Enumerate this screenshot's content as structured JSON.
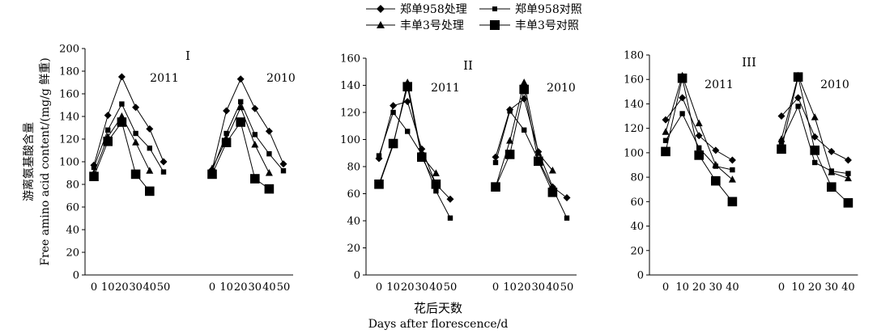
{
  "legend": [
    {
      "label": "郑单958处理",
      "marker": "diamond"
    },
    {
      "label": "郑单958对照",
      "marker": "square-small"
    },
    {
      "label": "丰单3号处理",
      "marker": "triangle"
    },
    {
      "label": "丰单3号对照",
      "marker": "square-large"
    }
  ],
  "xlabel_cn": "花后天数",
  "xlabel_en": "Days after florescence/d",
  "ylabel_cn": "游离氨基酸含量",
  "ylabel_en": "Free amino acid content/(mg/g 鲜重)",
  "chart_data": [
    {
      "type": "line",
      "panel_label": "I",
      "yticks": [
        0,
        20,
        40,
        60,
        80,
        100,
        120,
        140,
        160,
        180,
        200
      ],
      "ylim": [
        0,
        200
      ],
      "groups": [
        {
          "year": "2011",
          "x": [
            0,
            10,
            20,
            30,
            40,
            50
          ],
          "series": [
            {
              "name": "郑单958处理",
              "values": [
                97,
                141,
                175,
                148,
                129,
                100
              ]
            },
            {
              "name": "郑单958对照",
              "values": [
                95,
                128,
                151,
                125,
                112,
                91
              ]
            },
            {
              "name": "丰单3号处理",
              "values": [
                90,
                122,
                140,
                117,
                92,
                null
              ]
            },
            {
              "name": "丰单3号对照",
              "values": [
                87,
                118,
                135,
                89,
                74,
                null
              ]
            }
          ]
        },
        {
          "year": "2010",
          "x": [
            0,
            10,
            20,
            30,
            40,
            50
          ],
          "series": [
            {
              "name": "郑单958处理",
              "values": [
                93,
                145,
                173,
                147,
                127,
                98
              ]
            },
            {
              "name": "郑单958对照",
              "values": [
                92,
                125,
                153,
                124,
                107,
                92
              ]
            },
            {
              "name": "丰单3号处理",
              "values": [
                94,
                120,
                148,
                115,
                90,
                null
              ]
            },
            {
              "name": "丰单3号对照",
              "values": [
                89,
                117,
                135,
                85,
                76,
                null
              ]
            }
          ]
        }
      ]
    },
    {
      "type": "line",
      "panel_label": "II",
      "yticks": [
        0,
        20,
        40,
        60,
        80,
        100,
        120,
        140,
        160
      ],
      "ylim": [
        0,
        160
      ],
      "groups": [
        {
          "year": "2011",
          "x": [
            0,
            10,
            20,
            30,
            40,
            50
          ],
          "series": [
            {
              "name": "郑单958处理",
              "values": [
                86,
                125,
                128,
                93,
                67,
                56
              ]
            },
            {
              "name": "郑单958对照",
              "values": [
                88,
                120,
                106,
                89,
                62,
                42
              ]
            },
            {
              "name": "丰单3号处理",
              "values": [
                66,
                96,
                142,
                88,
                75,
                null
              ]
            },
            {
              "name": "丰单3号对照",
              "values": [
                67,
                97,
                139,
                87,
                67,
                null
              ]
            }
          ]
        },
        {
          "year": "2010",
          "x": [
            0,
            10,
            20,
            30,
            40,
            50
          ],
          "series": [
            {
              "name": "郑单958处理",
              "values": [
                87,
                122,
                130,
                91,
                65,
                57
              ]
            },
            {
              "name": "郑单958对照",
              "values": [
                83,
                121,
                107,
                85,
                64,
                42
              ]
            },
            {
              "name": "丰单3号处理",
              "values": [
                65,
                99,
                142,
                90,
                77,
                null
              ]
            },
            {
              "name": "丰单3号对照",
              "values": [
                65,
                89,
                137,
                84,
                61,
                null
              ]
            }
          ]
        }
      ]
    },
    {
      "type": "line",
      "panel_label": "III",
      "yticks": [
        0,
        20,
        40,
        60,
        80,
        100,
        120,
        140,
        160,
        180
      ],
      "ylim": [
        0,
        180
      ],
      "groups": [
        {
          "year": "2011",
          "x": [
            0,
            10,
            20,
            30,
            40
          ],
          "series": [
            {
              "name": "郑单958处理",
              "values": [
                127,
                145,
                114,
                102,
                94
              ]
            },
            {
              "name": "郑单958对照",
              "values": [
                110,
                132,
                104,
                89,
                86
              ]
            },
            {
              "name": "丰单3号处理",
              "values": [
                117,
                163,
                124,
                90,
                78
              ]
            },
            {
              "name": "丰单3号对照",
              "values": [
                101,
                161,
                98,
                77,
                60
              ]
            }
          ]
        },
        {
          "year": "2010",
          "x": [
            0,
            10,
            20,
            30,
            40
          ],
          "series": [
            {
              "name": "郑单958处理",
              "values": [
                130,
                145,
                113,
                101,
                94
              ]
            },
            {
              "name": "郑单958对照",
              "values": [
                109,
                138,
                92,
                85,
                83
              ]
            },
            {
              "name": "丰单3号处理",
              "values": [
                111,
                163,
                129,
                84,
                79
              ]
            },
            {
              "name": "丰单3号对照",
              "values": [
                103,
                162,
                102,
                72,
                59
              ]
            }
          ]
        }
      ]
    }
  ]
}
